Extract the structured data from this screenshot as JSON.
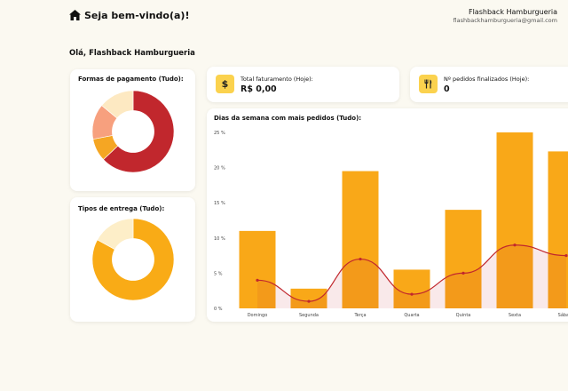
{
  "header": {
    "welcome": "Seja bem-vindo(a)!",
    "user_name": "Flashback Hamburgueria",
    "user_email": "flashbackhamburgueria@gmail.com"
  },
  "greeting": "Olá, Flashback Hamburgueria",
  "payment_card": {
    "title": "Formas de pagamento (Tudo):",
    "slices": [
      {
        "value": 63,
        "color": "#c1272d"
      },
      {
        "value": 9,
        "color": "#f5a623"
      },
      {
        "value": 14,
        "color": "#f7a07e"
      },
      {
        "value": 14,
        "color": "#fde9c2"
      }
    ]
  },
  "delivery_card": {
    "title": "Tipos de entrega (Tudo):",
    "slices": [
      {
        "value": 83,
        "color": "#f9ab16"
      },
      {
        "value": 17,
        "color": "#fdeec8"
      }
    ]
  },
  "kpis": [
    {
      "icon": "dollar-icon",
      "label": "Total faturamento (Hoje):",
      "value": "R$ 0,00"
    },
    {
      "icon": "fork-knife-icon",
      "label": "Nº pedidos finalizados (Hoje):",
      "value": "0"
    }
  ],
  "chart_data": {
    "type": "bar",
    "title": "Dias da semana com mais pedidos (Tudo):",
    "categories": [
      "Domingo",
      "Segunda",
      "Terça",
      "Quarta",
      "Quinta",
      "Sexta",
      "Sábado"
    ],
    "values": [
      11,
      2.8,
      19.5,
      5.5,
      14,
      25,
      22.3
    ],
    "line_values": [
      4,
      1,
      7,
      2,
      5,
      9,
      7.5
    ],
    "yticks": [
      "0 %",
      "5 %",
      "10 %",
      "15 %",
      "20 %",
      "25 %"
    ],
    "ylim": [
      0,
      25
    ],
    "bar_color": "#f9a818",
    "line_color": "#c1272d",
    "grid": false
  }
}
